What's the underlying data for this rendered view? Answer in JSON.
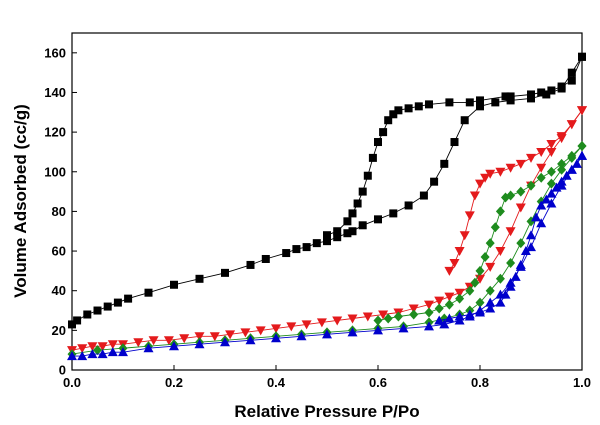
{
  "chart_data": {
    "type": "scatter",
    "xlabel": "Relative Pressure P/Po",
    "ylabel": "Volume Adsorbed (cc/g)",
    "xlim": [
      0.0,
      1.0
    ],
    "ylim": [
      0,
      170
    ],
    "xticks": [
      "0.0",
      "0.2",
      "0.4",
      "0.6",
      "0.8",
      "1.0"
    ],
    "yticks": [
      "0",
      "20",
      "40",
      "60",
      "80",
      "100",
      "120",
      "140",
      "160"
    ],
    "grid": false,
    "legend": "none",
    "series": [
      {
        "color": "#000000",
        "marker": "square",
        "adsorption": [
          [
            0.0,
            23
          ],
          [
            0.01,
            25
          ],
          [
            0.03,
            28
          ],
          [
            0.05,
            30
          ],
          [
            0.07,
            32
          ],
          [
            0.09,
            34
          ],
          [
            0.11,
            36
          ],
          [
            0.15,
            39
          ],
          [
            0.2,
            43
          ],
          [
            0.25,
            46
          ],
          [
            0.3,
            49
          ],
          [
            0.35,
            53
          ],
          [
            0.38,
            56
          ],
          [
            0.42,
            59
          ],
          [
            0.44,
            61
          ],
          [
            0.46,
            62
          ],
          [
            0.48,
            64
          ],
          [
            0.5,
            65
          ],
          [
            0.52,
            67
          ],
          [
            0.54,
            69
          ],
          [
            0.55,
            70
          ],
          [
            0.57,
            73
          ],
          [
            0.6,
            76
          ],
          [
            0.63,
            79
          ],
          [
            0.66,
            83
          ],
          [
            0.69,
            88
          ],
          [
            0.71,
            95
          ],
          [
            0.73,
            104
          ],
          [
            0.75,
            115
          ],
          [
            0.77,
            126
          ],
          [
            0.8,
            133
          ],
          [
            0.83,
            135
          ],
          [
            0.86,
            136
          ],
          [
            0.9,
            137
          ],
          [
            0.93,
            139
          ],
          [
            0.96,
            142
          ],
          [
            0.98,
            150
          ],
          [
            1.0,
            158
          ]
        ],
        "desorption": [
          [
            1.0,
            158
          ],
          [
            0.98,
            146
          ],
          [
            0.96,
            143
          ],
          [
            0.94,
            141
          ],
          [
            0.92,
            140
          ],
          [
            0.9,
            139
          ],
          [
            0.86,
            138
          ],
          [
            0.85,
            138
          ],
          [
            0.8,
            136
          ],
          [
            0.78,
            135
          ],
          [
            0.74,
            135
          ],
          [
            0.7,
            134
          ],
          [
            0.68,
            133
          ],
          [
            0.66,
            132
          ],
          [
            0.64,
            131
          ],
          [
            0.63,
            129
          ],
          [
            0.62,
            126
          ],
          [
            0.61,
            120
          ],
          [
            0.6,
            115
          ],
          [
            0.59,
            107
          ],
          [
            0.58,
            98
          ],
          [
            0.57,
            90
          ],
          [
            0.56,
            84
          ],
          [
            0.55,
            79
          ],
          [
            0.54,
            75
          ],
          [
            0.52,
            70
          ],
          [
            0.5,
            68
          ]
        ]
      },
      {
        "color": "#e41a1c",
        "marker": "triangle-down",
        "adsorption": [
          [
            0.0,
            10
          ],
          [
            0.02,
            11
          ],
          [
            0.04,
            12
          ],
          [
            0.06,
            12
          ],
          [
            0.08,
            13
          ],
          [
            0.1,
            13
          ],
          [
            0.13,
            14
          ],
          [
            0.16,
            15
          ],
          [
            0.19,
            15
          ],
          [
            0.22,
            16
          ],
          [
            0.25,
            17
          ],
          [
            0.28,
            17
          ],
          [
            0.31,
            18
          ],
          [
            0.34,
            19
          ],
          [
            0.37,
            20
          ],
          [
            0.4,
            21
          ],
          [
            0.43,
            22
          ],
          [
            0.46,
            23
          ],
          [
            0.49,
            24
          ],
          [
            0.52,
            25
          ],
          [
            0.55,
            26
          ],
          [
            0.58,
            27
          ],
          [
            0.61,
            28
          ],
          [
            0.64,
            29
          ],
          [
            0.67,
            31
          ],
          [
            0.7,
            33
          ],
          [
            0.72,
            35
          ],
          [
            0.74,
            37
          ],
          [
            0.76,
            39
          ],
          [
            0.78,
            42
          ],
          [
            0.8,
            46
          ],
          [
            0.82,
            52
          ],
          [
            0.84,
            60
          ],
          [
            0.86,
            70
          ],
          [
            0.88,
            82
          ],
          [
            0.9,
            93
          ],
          [
            0.92,
            102
          ],
          [
            0.94,
            110
          ],
          [
            0.96,
            117
          ],
          [
            0.98,
            124
          ],
          [
            1.0,
            131
          ]
        ],
        "desorption": [
          [
            1.0,
            131
          ],
          [
            0.98,
            124
          ],
          [
            0.96,
            118
          ],
          [
            0.94,
            114
          ],
          [
            0.92,
            110
          ],
          [
            0.9,
            107
          ],
          [
            0.88,
            104
          ],
          [
            0.86,
            102
          ],
          [
            0.84,
            100
          ],
          [
            0.82,
            99
          ],
          [
            0.81,
            97
          ],
          [
            0.8,
            94
          ],
          [
            0.79,
            88
          ],
          [
            0.78,
            78
          ],
          [
            0.77,
            68
          ],
          [
            0.76,
            60
          ],
          [
            0.75,
            54
          ],
          [
            0.74,
            50
          ]
        ]
      },
      {
        "color": "#1e8c1e",
        "marker": "diamond",
        "adsorption": [
          [
            0.0,
            8
          ],
          [
            0.05,
            10
          ],
          [
            0.1,
            11
          ],
          [
            0.15,
            12
          ],
          [
            0.2,
            13
          ],
          [
            0.25,
            14
          ],
          [
            0.3,
            15
          ],
          [
            0.35,
            16
          ],
          [
            0.4,
            17
          ],
          [
            0.45,
            18
          ],
          [
            0.5,
            19
          ],
          [
            0.55,
            20
          ],
          [
            0.6,
            21
          ],
          [
            0.65,
            22
          ],
          [
            0.7,
            24
          ],
          [
            0.73,
            26
          ],
          [
            0.76,
            28
          ],
          [
            0.78,
            30
          ],
          [
            0.8,
            34
          ],
          [
            0.82,
            40
          ],
          [
            0.84,
            46
          ],
          [
            0.86,
            54
          ],
          [
            0.88,
            64
          ],
          [
            0.9,
            75
          ],
          [
            0.92,
            85
          ],
          [
            0.94,
            94
          ],
          [
            0.96,
            101
          ],
          [
            0.98,
            107
          ],
          [
            1.0,
            113
          ]
        ],
        "desorption": [
          [
            1.0,
            113
          ],
          [
            0.98,
            108
          ],
          [
            0.96,
            104
          ],
          [
            0.94,
            100
          ],
          [
            0.92,
            97
          ],
          [
            0.9,
            93
          ],
          [
            0.88,
            90
          ],
          [
            0.86,
            88
          ],
          [
            0.85,
            87
          ],
          [
            0.84,
            80
          ],
          [
            0.83,
            72
          ],
          [
            0.82,
            64
          ],
          [
            0.81,
            57
          ],
          [
            0.8,
            50
          ],
          [
            0.79,
            44
          ],
          [
            0.78,
            40
          ],
          [
            0.76,
            36
          ],
          [
            0.74,
            33
          ],
          [
            0.72,
            31
          ],
          [
            0.7,
            29
          ],
          [
            0.67,
            28
          ],
          [
            0.64,
            27
          ],
          [
            0.62,
            26
          ],
          [
            0.6,
            25
          ]
        ]
      },
      {
        "color": "#0000cc",
        "marker": "triangle-up",
        "adsorption": [
          [
            0.0,
            7
          ],
          [
            0.02,
            7
          ],
          [
            0.04,
            8
          ],
          [
            0.06,
            8
          ],
          [
            0.08,
            9
          ],
          [
            0.1,
            9
          ],
          [
            0.15,
            11
          ],
          [
            0.2,
            12
          ],
          [
            0.25,
            13
          ],
          [
            0.3,
            14
          ],
          [
            0.35,
            15
          ],
          [
            0.4,
            16
          ],
          [
            0.45,
            17
          ],
          [
            0.5,
            18
          ],
          [
            0.55,
            19
          ],
          [
            0.6,
            20
          ],
          [
            0.65,
            21
          ],
          [
            0.7,
            22
          ],
          [
            0.73,
            23
          ],
          [
            0.76,
            25
          ],
          [
            0.78,
            27
          ],
          [
            0.8,
            30
          ],
          [
            0.82,
            34
          ],
          [
            0.84,
            38
          ],
          [
            0.86,
            44
          ],
          [
            0.88,
            52
          ],
          [
            0.9,
            62
          ],
          [
            0.92,
            74
          ],
          [
            0.94,
            84
          ],
          [
            0.96,
            93
          ],
          [
            0.98,
            101
          ],
          [
            1.0,
            108
          ]
        ],
        "desorption": [
          [
            1.0,
            108
          ],
          [
            0.99,
            104
          ],
          [
            0.98,
            101
          ],
          [
            0.97,
            98
          ],
          [
            0.96,
            95
          ],
          [
            0.95,
            92
          ],
          [
            0.94,
            89
          ],
          [
            0.93,
            86
          ],
          [
            0.92,
            83
          ],
          [
            0.91,
            77
          ],
          [
            0.9,
            68
          ],
          [
            0.89,
            60
          ],
          [
            0.88,
            53
          ],
          [
            0.87,
            47
          ],
          [
            0.86,
            42
          ],
          [
            0.85,
            38
          ],
          [
            0.84,
            34
          ],
          [
            0.82,
            31
          ],
          [
            0.8,
            29
          ],
          [
            0.78,
            28
          ],
          [
            0.76,
            27
          ],
          [
            0.74,
            26
          ],
          [
            0.72,
            25
          ]
        ]
      }
    ]
  }
}
